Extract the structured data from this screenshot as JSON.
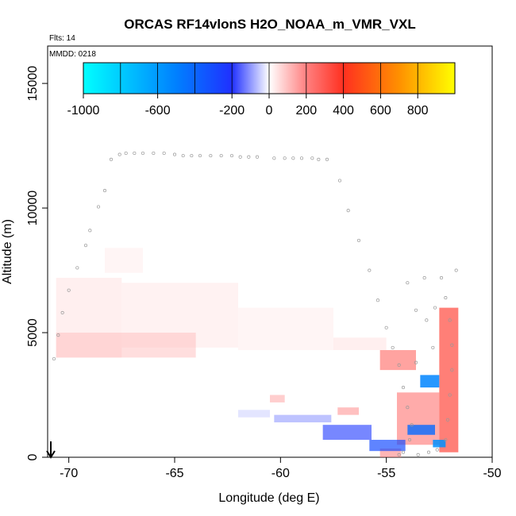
{
  "chart_data": {
    "type": "heatmap",
    "title": "ORCAS RF14vlonS H2O_NOAA_m_VMR_VXL",
    "flights_label": "Flts: 14",
    "mmdd_label": "MMDD: 0218",
    "xlabel": "Longitude (deg E)",
    "ylabel": "Altitude (m)",
    "xlim": [
      -71,
      -50
    ],
    "ylim": [
      0,
      16500
    ],
    "x_ticks": [
      -70,
      -65,
      -60,
      -55,
      -50
    ],
    "x_tick_labels": [
      "-70",
      "-65",
      "-60",
      "-55",
      "-50"
    ],
    "y_ticks": [
      0,
      5000,
      10000,
      15000
    ],
    "y_tick_labels": [
      "0",
      "5000",
      "10000",
      "15000"
    ],
    "colorbar": {
      "range": [
        -1000,
        1000
      ],
      "tick_values": [
        -1000,
        -600,
        -200,
        0,
        200,
        400,
        600,
        800
      ],
      "tick_labels": [
        "-1000",
        "-600",
        "-200",
        "0",
        "200",
        "400",
        "600",
        "800"
      ],
      "colors": [
        "#00ffff",
        "#0000ff",
        "#ffffff",
        "#ff0000",
        "#ffff00"
      ]
    },
    "cells": [
      {
        "lon": [
          -70.6,
          -67.5
        ],
        "alt": [
          4000,
          7200
        ],
        "value": 60
      },
      {
        "lon": [
          -67.5,
          -62.0
        ],
        "alt": [
          4400,
          7000
        ],
        "value": 50
      },
      {
        "lon": [
          -62.0,
          -57.5
        ],
        "alt": [
          4300,
          6000
        ],
        "value": 40
      },
      {
        "lon": [
          -57.5,
          -55.0
        ],
        "alt": [
          4300,
          4800
        ],
        "value": 60
      },
      {
        "lon": [
          -70.6,
          -64.0
        ],
        "alt": [
          4000,
          5000
        ],
        "value": 110
      },
      {
        "lon": [
          -68.3,
          -66.5
        ],
        "alt": [
          7400,
          8400
        ],
        "value": 40
      },
      {
        "lon": [
          -60.5,
          -59.8
        ],
        "alt": [
          2200,
          2500
        ],
        "value": 150
      },
      {
        "lon": [
          -57.3,
          -56.3
        ],
        "alt": [
          1700,
          2000
        ],
        "value": 180
      },
      {
        "lon": [
          -55.3,
          -53.6
        ],
        "alt": [
          3500,
          4300
        ],
        "value": 250
      },
      {
        "lon": [
          -54.5,
          -52.5
        ],
        "alt": [
          500,
          2600
        ],
        "value": 230
      },
      {
        "lon": [
          -52.5,
          -51.6
        ],
        "alt": [
          200,
          6000
        ],
        "value": 330
      },
      {
        "lon": [
          -55.3,
          -54.3
        ],
        "alt": [
          0,
          350
        ],
        "value": 200
      },
      {
        "lon": [
          -60.3,
          -57.6
        ],
        "alt": [
          1400,
          1700
        ],
        "value": -120
      },
      {
        "lon": [
          -58.0,
          -55.7
        ],
        "alt": [
          700,
          1300
        ],
        "value": -230
      },
      {
        "lon": [
          -55.8,
          -54.1
        ],
        "alt": [
          250,
          700
        ],
        "value": -300
      },
      {
        "lon": [
          -54.0,
          -52.7
        ],
        "alt": [
          900,
          1300
        ],
        "value": -420
      },
      {
        "lon": [
          -53.4,
          -52.5
        ],
        "alt": [
          2800,
          3300
        ],
        "value": -520
      },
      {
        "lon": [
          -52.8,
          -52.2
        ],
        "alt": [
          400,
          700
        ],
        "value": -560
      },
      {
        "lon": [
          -62.0,
          -60.5
        ],
        "alt": [
          1600,
          1900
        ],
        "value": -60
      }
    ],
    "flight_track": [
      [
        -70.7,
        3950
      ],
      [
        -70.5,
        4900
      ],
      [
        -70.3,
        5800
      ],
      [
        -70.0,
        6700
      ],
      [
        -69.6,
        7600
      ],
      [
        -69.2,
        8500
      ],
      [
        -69.0,
        9100
      ],
      [
        -68.6,
        10050
      ],
      [
        -68.3,
        10700
      ],
      [
        -68.0,
        11950
      ],
      [
        -67.6,
        12150
      ],
      [
        -67.3,
        12200
      ],
      [
        -66.9,
        12200
      ],
      [
        -66.5,
        12200
      ],
      [
        -66.0,
        12200
      ],
      [
        -65.5,
        12200
      ],
      [
        -65.0,
        12150
      ],
      [
        -64.6,
        12100
      ],
      [
        -64.2,
        12100
      ],
      [
        -63.8,
        12100
      ],
      [
        -63.3,
        12100
      ],
      [
        -62.8,
        12100
      ],
      [
        -62.3,
        12100
      ],
      [
        -61.9,
        12050
      ],
      [
        -61.5,
        12050
      ],
      [
        -61.1,
        12050
      ],
      [
        -60.3,
        12000
      ],
      [
        -59.8,
        12000
      ],
      [
        -59.4,
        12000
      ],
      [
        -59.0,
        12000
      ],
      [
        -58.5,
        12000
      ],
      [
        -58.2,
        11950
      ],
      [
        -57.8,
        11950
      ],
      [
        -57.2,
        11100
      ],
      [
        -56.8,
        9900
      ],
      [
        -56.3,
        8700
      ],
      [
        -55.8,
        7500
      ],
      [
        -55.4,
        6300
      ],
      [
        -55.0,
        5200
      ],
      [
        -54.7,
        4400
      ],
      [
        -54.4,
        3700
      ],
      [
        -54.2,
        2800
      ],
      [
        -54.0,
        2000
      ],
      [
        -53.8,
        1300
      ],
      [
        -53.9,
        700
      ],
      [
        -54.2,
        200
      ],
      [
        -54.4,
        100
      ],
      [
        -53.5,
        100
      ],
      [
        -53.0,
        200
      ],
      [
        -52.6,
        300
      ],
      [
        -52.2,
        700
      ],
      [
        -52.1,
        1500
      ],
      [
        -52.0,
        2500
      ],
      [
        -51.9,
        3500
      ],
      [
        -51.9,
        4500
      ],
      [
        -52.0,
        5500
      ],
      [
        -52.2,
        6400
      ],
      [
        -52.4,
        7200
      ],
      [
        -51.7,
        7500
      ],
      [
        -53.2,
        7200
      ],
      [
        -54.0,
        7000
      ],
      [
        -53.6,
        5900
      ],
      [
        -53.1,
        5500
      ],
      [
        -52.8,
        4400
      ],
      [
        -53.6,
        3800
      ],
      [
        -52.7,
        6000
      ]
    ]
  }
}
